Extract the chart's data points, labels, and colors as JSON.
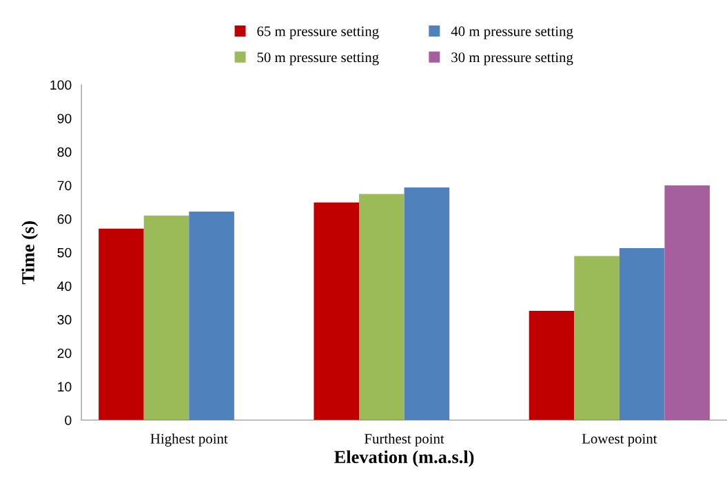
{
  "chart_data": {
    "type": "bar",
    "xlabel": "Elevation (m.a.s.l)",
    "ylabel": "Time (s)",
    "categories": [
      "Highest point",
      "Furthest point",
      "Lowest point"
    ],
    "series": [
      {
        "name": "65 m pressure setting",
        "color": "#c00000",
        "values": [
          57.1,
          64.9,
          32.6
        ]
      },
      {
        "name": "50 m pressure setting",
        "color": "#9bbb59",
        "values": [
          61.0,
          67.4,
          48.9
        ]
      },
      {
        "name": "40 m pressure setting",
        "color": "#4f81bd",
        "values": [
          62.2,
          69.4,
          51.3
        ]
      },
      {
        "name": "30 m pressure setting",
        "color": "#a65f9e",
        "values": [
          null,
          null,
          70.0
        ]
      }
    ],
    "ylim": [
      0,
      100
    ],
    "yticks": [
      0,
      10,
      20,
      30,
      40,
      50,
      60,
      70,
      80,
      90,
      100
    ],
    "grid": false,
    "legend": "top"
  }
}
